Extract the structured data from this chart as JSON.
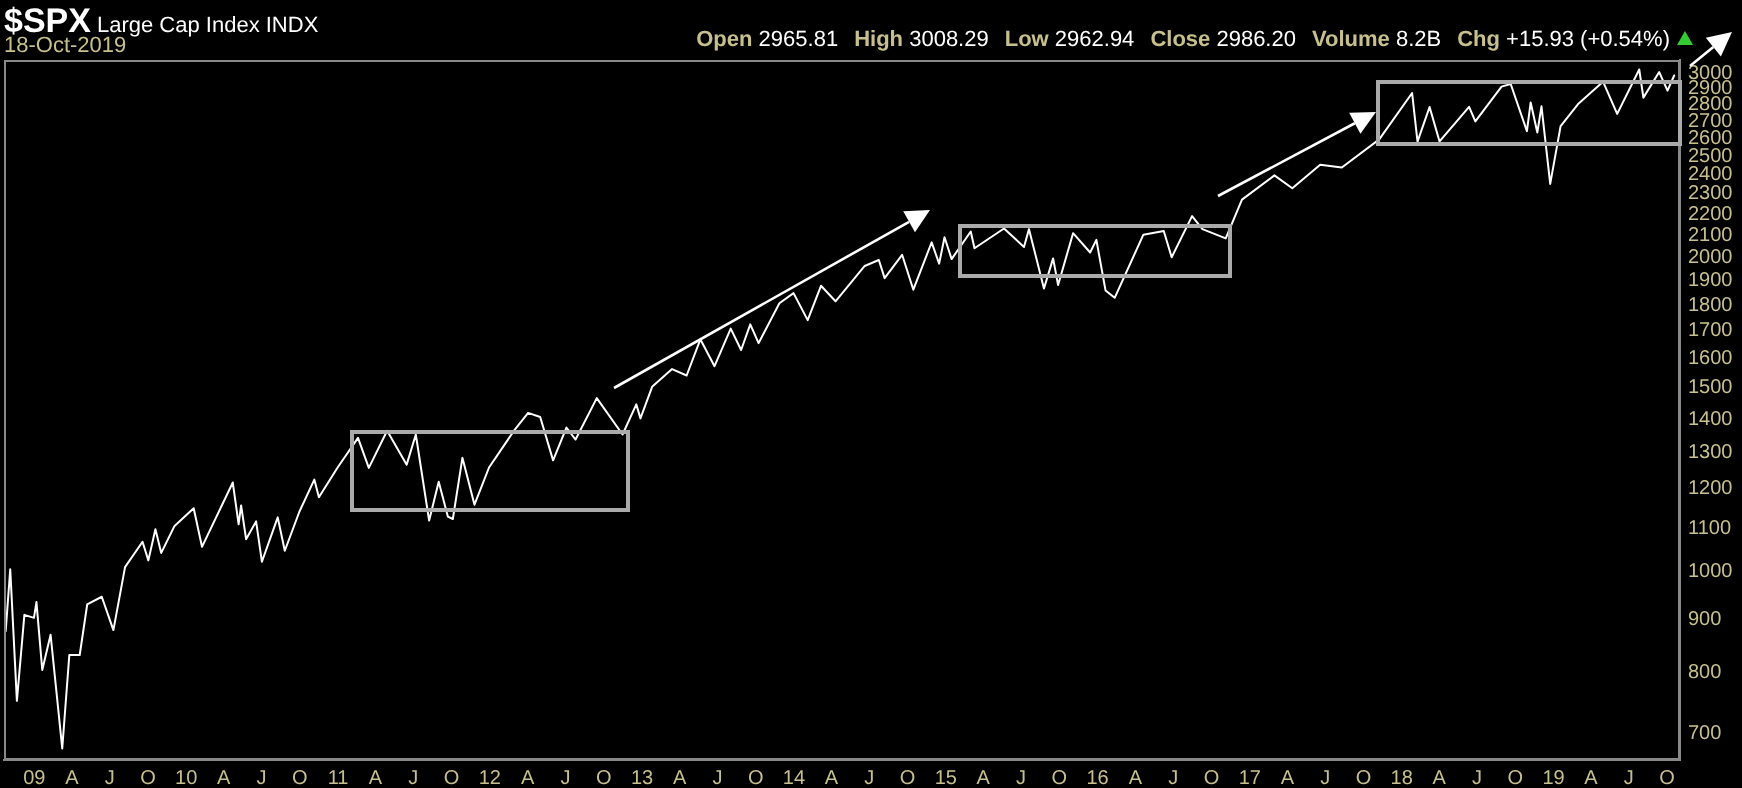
{
  "chart_data": {
    "type": "line",
    "title": "$SPX",
    "subtitle": "Large Cap Index INDX",
    "annotations": [
      "18-Oct-2019",
      "Open 2965.81",
      "High 3008.29",
      "Low 2962.94",
      "Close 2986.20",
      "Volume 8.2B",
      "Chg +15.93 (+0.54%)"
    ],
    "x": [
      "2008-10-24",
      "2008-11-04",
      "2008-11-20",
      "2008-12-08",
      "2008-12-31",
      "2009-01-06",
      "2009-01-20",
      "2009-02-09",
      "2009-03-09",
      "2009-03-26",
      "2009-04-20",
      "2009-05-08",
      "2009-06-12",
      "2009-07-10",
      "2009-08-07",
      "2009-09-18",
      "2009-10-02",
      "2009-10-19",
      "2009-11-02",
      "2009-12-04",
      "2010-01-19",
      "2010-02-08",
      "2010-04-23",
      "2010-05-07",
      "2010-05-13",
      "2010-05-25",
      "2010-06-18",
      "2010-07-02",
      "2010-08-09",
      "2010-08-26",
      "2010-09-30",
      "2010-11-05",
      "2010-11-16",
      "2010-12-31",
      "2011-02-18",
      "2011-03-16",
      "2011-04-29",
      "2011-06-15",
      "2011-07-07",
      "2011-08-08",
      "2011-08-31",
      "2011-09-22",
      "2011-10-04",
      "2011-10-27",
      "2011-11-25",
      "2011-12-30",
      "2012-02-29",
      "2012-04-02",
      "2012-05-01",
      "2012-06-01",
      "2012-07-03",
      "2012-07-25",
      "2012-09-14",
      "2012-11-15",
      "2012-12-18",
      "2012-12-28",
      "2013-01-25",
      "2013-03-14",
      "2013-04-18",
      "2013-05-21",
      "2013-06-24",
      "2013-08-02",
      "2013-08-27",
      "2013-09-18",
      "2013-10-08",
      "2013-11-27",
      "2013-12-31",
      "2014-02-03",
      "2014-03-07",
      "2014-04-11",
      "2014-06-20",
      "2014-07-24",
      "2014-08-07",
      "2014-09-18",
      "2014-10-15",
      "2014-11-28",
      "2014-12-16",
      "2014-12-29",
      "2015-01-15",
      "2015-03-02",
      "2015-03-11",
      "2015-05-21",
      "2015-07-08",
      "2015-07-20",
      "2015-08-25",
      "2015-09-16",
      "2015-09-28",
      "2015-11-03",
      "2015-12-14",
      "2015-12-29",
      "2016-01-20",
      "2016-02-11",
      "2016-04-20",
      "2016-06-08",
      "2016-06-27",
      "2016-08-15",
      "2016-09-09",
      "2016-11-04",
      "2016-12-13",
      "2017-03-01",
      "2017-04-13",
      "2017-06-19",
      "2017-08-10",
      "2017-11-08",
      "2018-01-26",
      "2018-02-08",
      "2018-03-09",
      "2018-04-02",
      "2018-06-12",
      "2018-06-27",
      "2018-08-29",
      "2018-09-20",
      "2018-10-29",
      "2018-11-07",
      "2018-11-23",
      "2018-12-03",
      "2018-12-24",
      "2019-01-18",
      "2019-03-01",
      "2019-04-30",
      "2019-06-03",
      "2019-07-26",
      "2019-08-05",
      "2019-09-12",
      "2019-10-02",
      "2019-10-18"
    ],
    "series": [
      {
        "color": "#ffffff",
        "values": [
          877,
          1005,
          752,
          909,
          903,
          935,
          805,
          870,
          677,
          832,
          832,
          930,
          946,
          879,
          1010,
          1068,
          1025,
          1098,
          1042,
          1106,
          1150,
          1056,
          1217,
          1110,
          1157,
          1074,
          1117,
          1022,
          1127,
          1047,
          1141,
          1225,
          1178,
          1258,
          1343,
          1257,
          1364,
          1266,
          1353,
          1119,
          1219,
          1129,
          1123,
          1285,
          1159,
          1258,
          1366,
          1419,
          1406,
          1278,
          1374,
          1338,
          1466,
          1353,
          1446,
          1402,
          1503,
          1563,
          1541,
          1669,
          1573,
          1709,
          1630,
          1725,
          1655,
          1807,
          1848,
          1741,
          1878,
          1815,
          1962,
          1988,
          1910,
          2011,
          1862,
          2067,
          1972,
          2090,
          1992,
          2117,
          2040,
          2131,
          2046,
          2128,
          1867,
          1995,
          1881,
          2109,
          2021,
          2078,
          1859,
          1829,
          2102,
          2119,
          2000,
          2190,
          2128,
          2085,
          2271,
          2396,
          2329,
          2453,
          2438,
          2594,
          2873,
          2581,
          2786,
          2582,
          2787,
          2699,
          2914,
          2931,
          2641,
          2814,
          2633,
          2790,
          2351,
          2671,
          2804,
          2946,
          2744,
          3026,
          2844,
          3009,
          2888,
          2986
        ]
      }
    ],
    "log": "y",
    "ylim": [
      660,
      3090
    ],
    "yticks": [
      700,
      800,
      900,
      1000,
      1100,
      1200,
      1300,
      1400,
      1500,
      1600,
      1700,
      1800,
      1900,
      2000,
      2100,
      2200,
      2300,
      2400,
      2500,
      2600,
      2700,
      2800,
      2900,
      3000
    ],
    "xlim": [
      "2008-10-20",
      "2019-11-01"
    ],
    "xticks": [
      {
        "value": "2009-01-01",
        "label": "09"
      },
      {
        "value": "2009-04-01",
        "label": "A"
      },
      {
        "value": "2009-07-01",
        "label": "J"
      },
      {
        "value": "2009-10-01",
        "label": "O"
      },
      {
        "value": "2010-01-01",
        "label": "10"
      },
      {
        "value": "2010-04-01",
        "label": "A"
      },
      {
        "value": "2010-07-01",
        "label": "J"
      },
      {
        "value": "2010-10-01",
        "label": "O"
      },
      {
        "value": "2011-01-01",
        "label": "11"
      },
      {
        "value": "2011-04-01",
        "label": "A"
      },
      {
        "value": "2011-07-01",
        "label": "J"
      },
      {
        "value": "2011-10-01",
        "label": "O"
      },
      {
        "value": "2012-01-01",
        "label": "12"
      },
      {
        "value": "2012-04-01",
        "label": "A"
      },
      {
        "value": "2012-07-01",
        "label": "J"
      },
      {
        "value": "2012-10-01",
        "label": "O"
      },
      {
        "value": "2013-01-01",
        "label": "13"
      },
      {
        "value": "2013-04-01",
        "label": "A"
      },
      {
        "value": "2013-07-01",
        "label": "J"
      },
      {
        "value": "2013-10-01",
        "label": "O"
      },
      {
        "value": "2014-01-01",
        "label": "14"
      },
      {
        "value": "2014-04-01",
        "label": "A"
      },
      {
        "value": "2014-07-01",
        "label": "J"
      },
      {
        "value": "2014-10-01",
        "label": "O"
      },
      {
        "value": "2015-01-01",
        "label": "15"
      },
      {
        "value": "2015-04-01",
        "label": "A"
      },
      {
        "value": "2015-07-01",
        "label": "J"
      },
      {
        "value": "2015-10-01",
        "label": "O"
      },
      {
        "value": "2016-01-01",
        "label": "16"
      },
      {
        "value": "2016-04-01",
        "label": "A"
      },
      {
        "value": "2016-07-01",
        "label": "J"
      },
      {
        "value": "2016-10-01",
        "label": "O"
      },
      {
        "value": "2017-01-01",
        "label": "17"
      },
      {
        "value": "2017-04-01",
        "label": "A"
      },
      {
        "value": "2017-07-01",
        "label": "J"
      },
      {
        "value": "2017-10-01",
        "label": "O"
      },
      {
        "value": "2018-01-01",
        "label": "18"
      },
      {
        "value": "2018-04-01",
        "label": "A"
      },
      {
        "value": "2018-07-01",
        "label": "J"
      },
      {
        "value": "2018-10-01",
        "label": "O"
      },
      {
        "value": "2019-01-01",
        "label": "19"
      },
      {
        "value": "2019-04-01",
        "label": "A"
      },
      {
        "value": "2019-07-01",
        "label": "J"
      },
      {
        "value": "2019-10-01",
        "label": "O"
      }
    ],
    "grid": false,
    "legend": false,
    "marker": "none",
    "line_style": "solid"
  }
}
